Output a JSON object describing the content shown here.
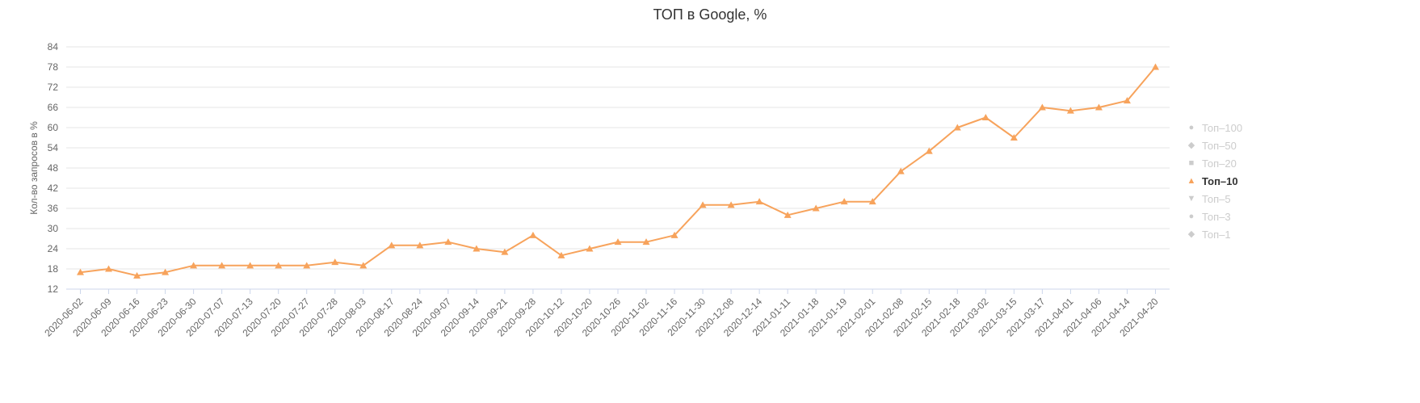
{
  "colors": {
    "series": "#f7a35c",
    "gridline": "#e6e6e6",
    "axis_line": "#ccd6eb",
    "axis_label": "#666666",
    "title": "#333333",
    "legend_inactive": "#cccccc",
    "legend_active": "#333333"
  },
  "legend": {
    "items": [
      {
        "label": "Топ–100",
        "symbol": "circle",
        "active": false
      },
      {
        "label": "Топ–50",
        "symbol": "diamond",
        "active": false
      },
      {
        "label": "Топ–20",
        "symbol": "square",
        "active": false
      },
      {
        "label": "Топ–10",
        "symbol": "triangle",
        "active": true
      },
      {
        "label": "Топ–5",
        "symbol": "triangle-down",
        "active": false
      },
      {
        "label": "Топ–3",
        "symbol": "circle",
        "active": false
      },
      {
        "label": "Топ–1",
        "symbol": "diamond",
        "active": false
      }
    ]
  },
  "chart_data": {
    "type": "line",
    "title": "ТОП в Google, %",
    "ylabel": "Кол-во запросов в %",
    "xlabel": "",
    "ylim": [
      12,
      84
    ],
    "yticks": [
      12,
      18,
      24,
      30,
      36,
      42,
      48,
      54,
      60,
      66,
      72,
      78,
      84
    ],
    "grid": true,
    "legend_position": "right",
    "categories": [
      "2020-06-02",
      "2020-06-09",
      "2020-06-16",
      "2020-06-23",
      "2020-06-30",
      "2020-07-07",
      "2020-07-13",
      "2020-07-20",
      "2020-07-27",
      "2020-07-28",
      "2020-08-03",
      "2020-08-17",
      "2020-08-24",
      "2020-09-07",
      "2020-09-14",
      "2020-09-21",
      "2020-09-28",
      "2020-10-12",
      "2020-10-20",
      "2020-10-26",
      "2020-11-02",
      "2020-11-16",
      "2020-11-30",
      "2020-12-08",
      "2020-12-14",
      "2021-01-11",
      "2021-01-18",
      "2021-01-19",
      "2021-02-01",
      "2021-02-08",
      "2021-02-15",
      "2021-02-18",
      "2021-03-02",
      "2021-03-15",
      "2021-03-17",
      "2021-04-01",
      "2021-04-06",
      "2021-04-14",
      "2021-04-20"
    ],
    "series": [
      {
        "name": "Топ–10",
        "values": [
          17,
          18,
          16,
          17,
          19,
          19,
          19,
          19,
          19,
          20,
          19,
          25,
          25,
          26,
          24,
          23,
          28,
          22,
          24,
          26,
          26,
          28,
          37,
          37,
          38,
          34,
          36,
          38,
          38,
          47,
          53,
          60,
          63,
          57,
          66,
          65,
          66,
          68,
          78
        ]
      }
    ]
  }
}
